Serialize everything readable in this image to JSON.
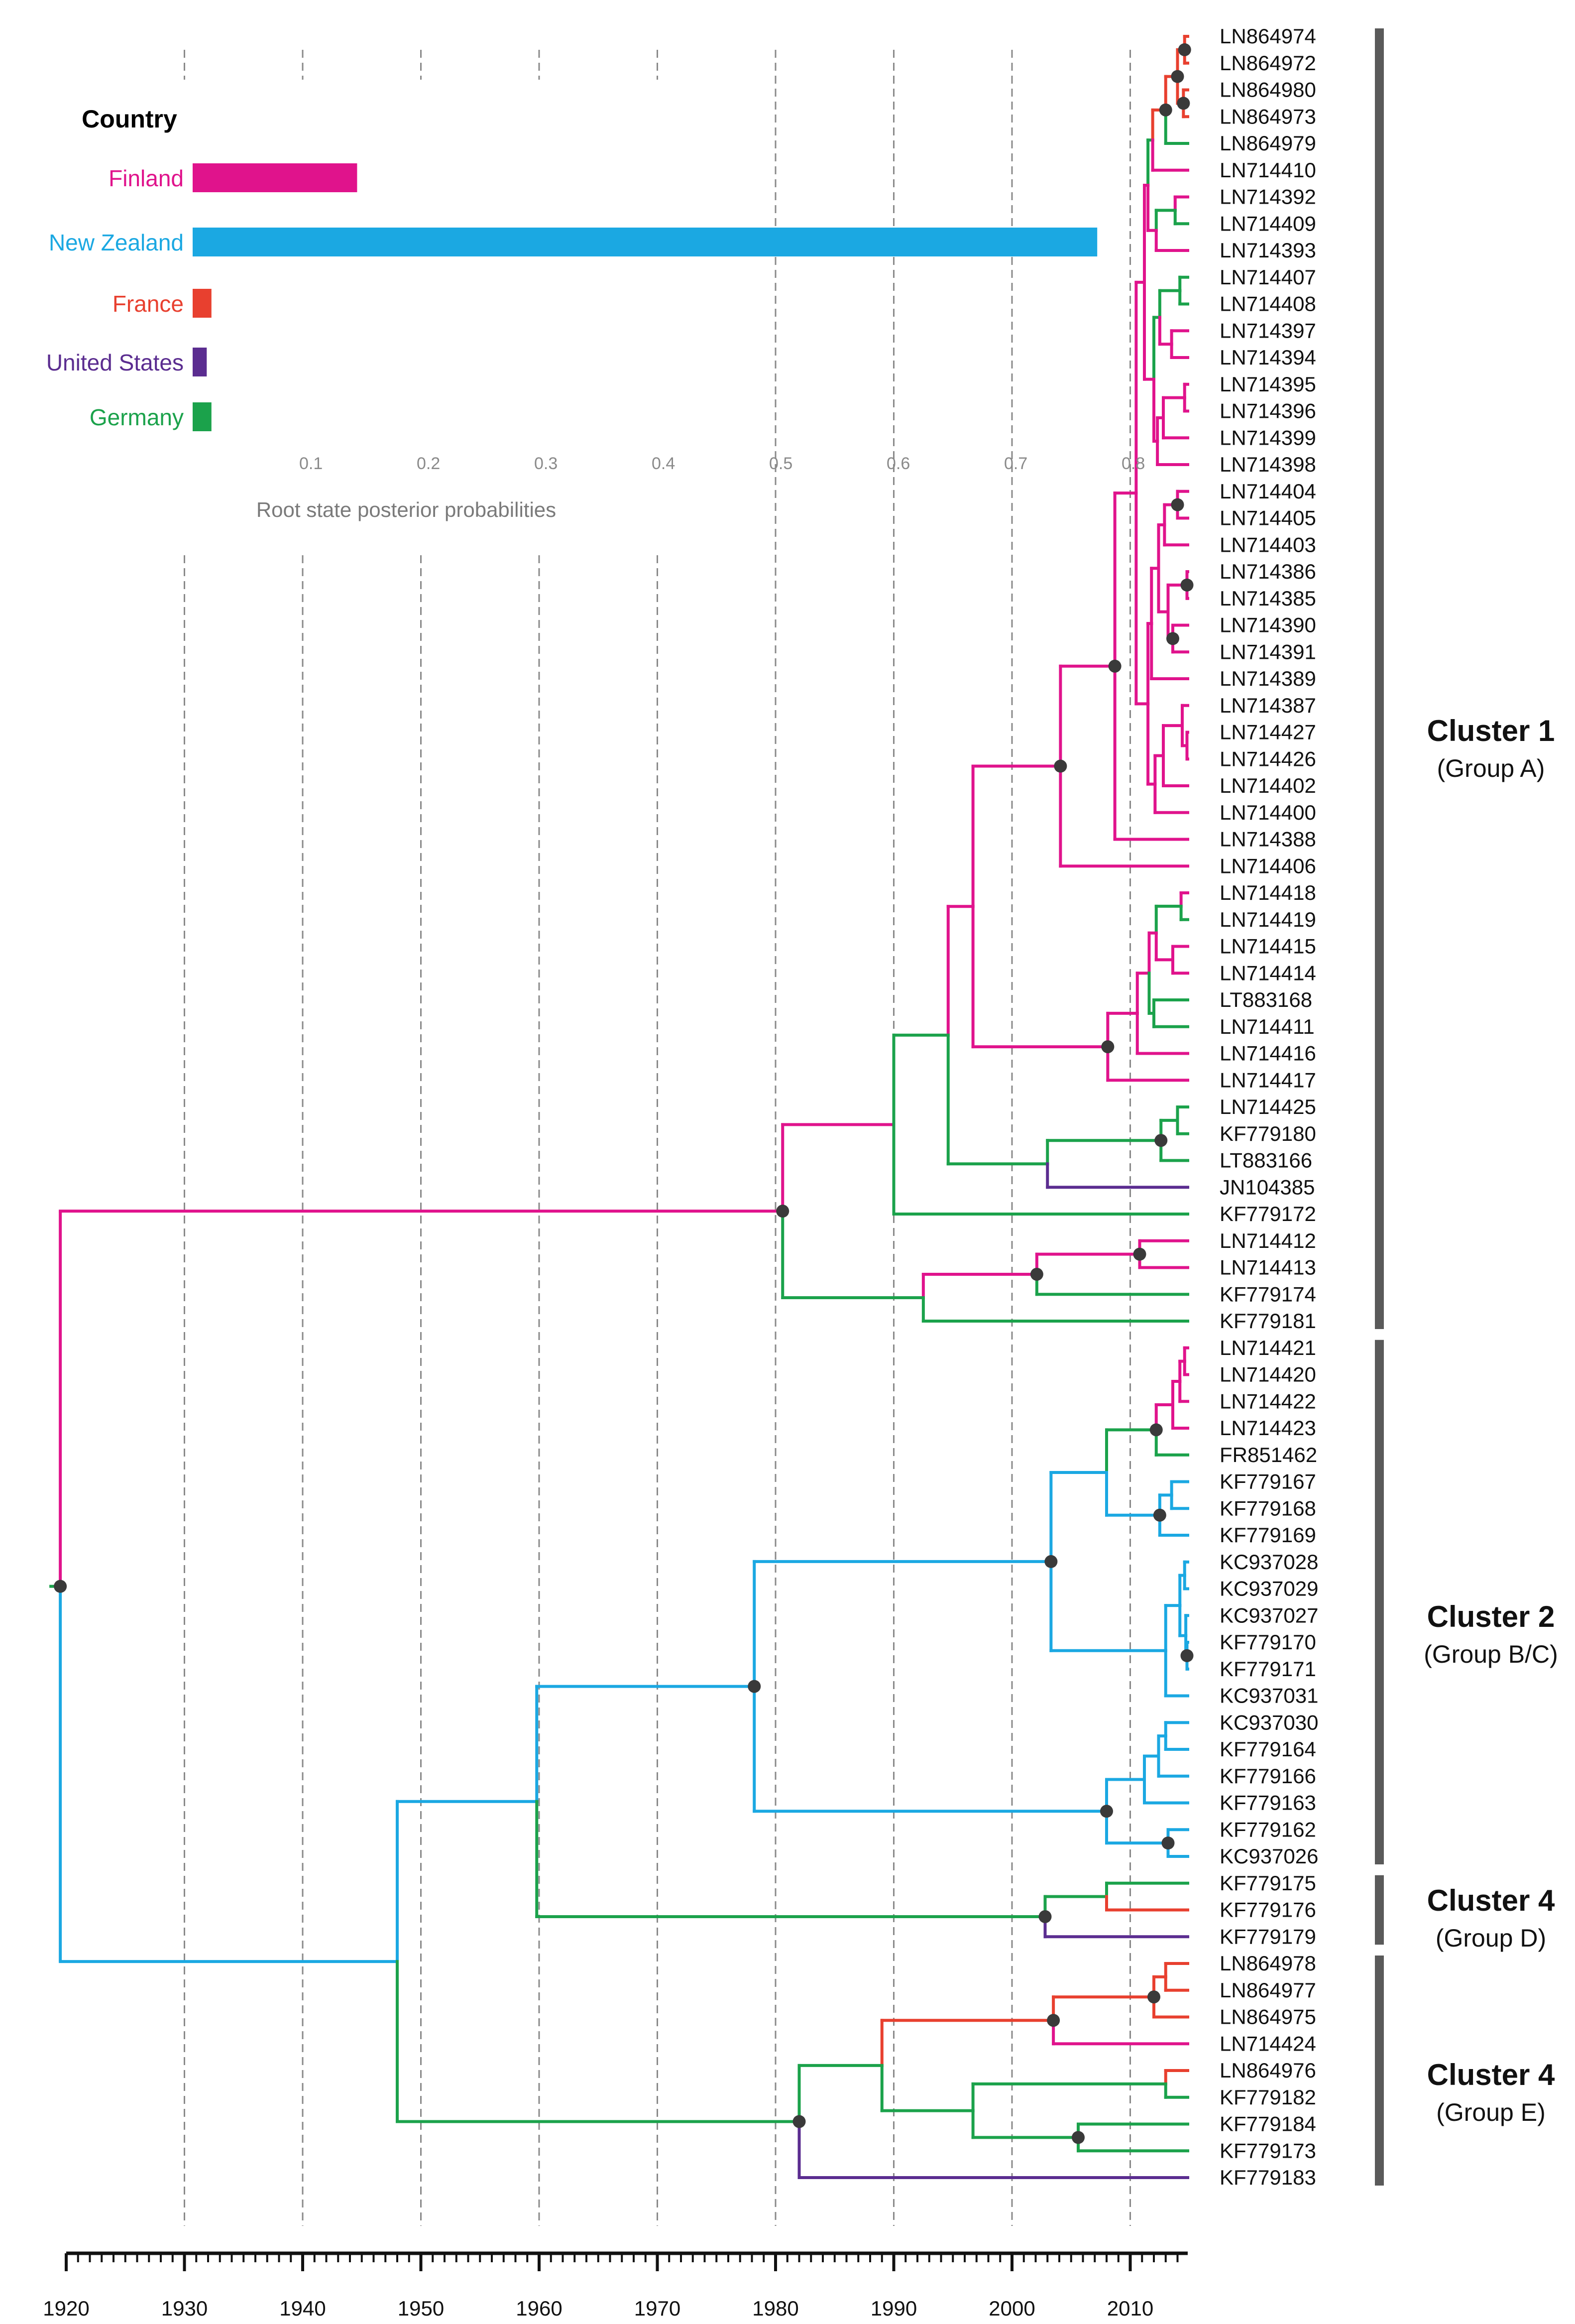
{
  "figure": {
    "type": "time-scaled phylogenetic tree with root-state posterior inset",
    "x_axis": {
      "ticks": [
        "1920",
        "1930",
        "1940",
        "1950",
        "1960",
        "1970",
        "1980",
        "1990",
        "2000",
        "2010"
      ],
      "range_years": [
        1920,
        2015
      ]
    },
    "tips": [
      "LN864974",
      "LN864972",
      "LN864980",
      "LN864973",
      "LN864979",
      "LN714410",
      "LN714392",
      "LN714409",
      "LN714393",
      "LN714407",
      "LN714408",
      "LN714397",
      "LN714394",
      "LN714395",
      "LN714396",
      "LN714399",
      "LN714398",
      "LN714404",
      "LN714405",
      "LN714403",
      "LN714386",
      "LN714385",
      "LN714390",
      "LN714391",
      "LN714389",
      "LN714387",
      "LN714427",
      "LN714426",
      "LN714402",
      "LN714400",
      "LN714388",
      "LN714406",
      "LN714418",
      "LN714419",
      "LN714415",
      "LN714414",
      "LT883168",
      "LN714411",
      "LN714416",
      "LN714417",
      "LN714425",
      "KF779180",
      "LT883166",
      "JN104385",
      "KF779172",
      "LN714412",
      "LN714413",
      "KF779174",
      "KF779181",
      "LN714421",
      "LN714420",
      "LN714422",
      "LN714423",
      "FR851462",
      "KF779167",
      "KF779168",
      "KF779169",
      "KC937028",
      "KC937029",
      "KC937027",
      "KF779170",
      "KF779171",
      "KC937031",
      "KC937030",
      "KF779164",
      "KF779166",
      "KF779163",
      "KF779162",
      "KC937026",
      "KF779175",
      "KF779176",
      "KF779179",
      "LN864978",
      "LN864977",
      "LN864975",
      "LN714424",
      "LN864976",
      "KF779182",
      "KF779184",
      "KF779173",
      "KF779183"
    ],
    "clusters": [
      {
        "title": "Cluster 1",
        "subtitle": "(Group A)"
      },
      {
        "title": "Cluster 2",
        "subtitle": "(Group B/C)"
      },
      {
        "title": "Cluster 4",
        "subtitle": "(Group D)"
      },
      {
        "title": "Cluster 4",
        "subtitle": "(Group E)"
      }
    ]
  },
  "chart_data": {
    "type": "bar",
    "orientation": "horizontal",
    "title": "Country",
    "xlabel": "Root state posterior probabilities",
    "categories": [
      "Finland",
      "New Zealand",
      "France",
      "United States",
      "Germany"
    ],
    "values": [
      0.14,
      0.77,
      0.016,
      0.012,
      0.016
    ],
    "colors": [
      "#e0138c",
      "#1ba8e2",
      "#e8402f",
      "#5b2d90",
      "#1ba24b"
    ],
    "xlim": [
      0,
      0.85
    ],
    "x_ticks": [
      "0.1",
      "0.2",
      "0.3",
      "0.4",
      "0.5",
      "0.6",
      "0.7",
      "0.8"
    ]
  },
  "colors": {
    "finland": "#e0138c",
    "new_zealand": "#1ba8e2",
    "france": "#e8402f",
    "united_states": "#5b2d90",
    "germany": "#1ba24b",
    "grid": "#8a8a8a",
    "cluster_bar": "#5a5a5a",
    "node": "#3a3a3a"
  }
}
